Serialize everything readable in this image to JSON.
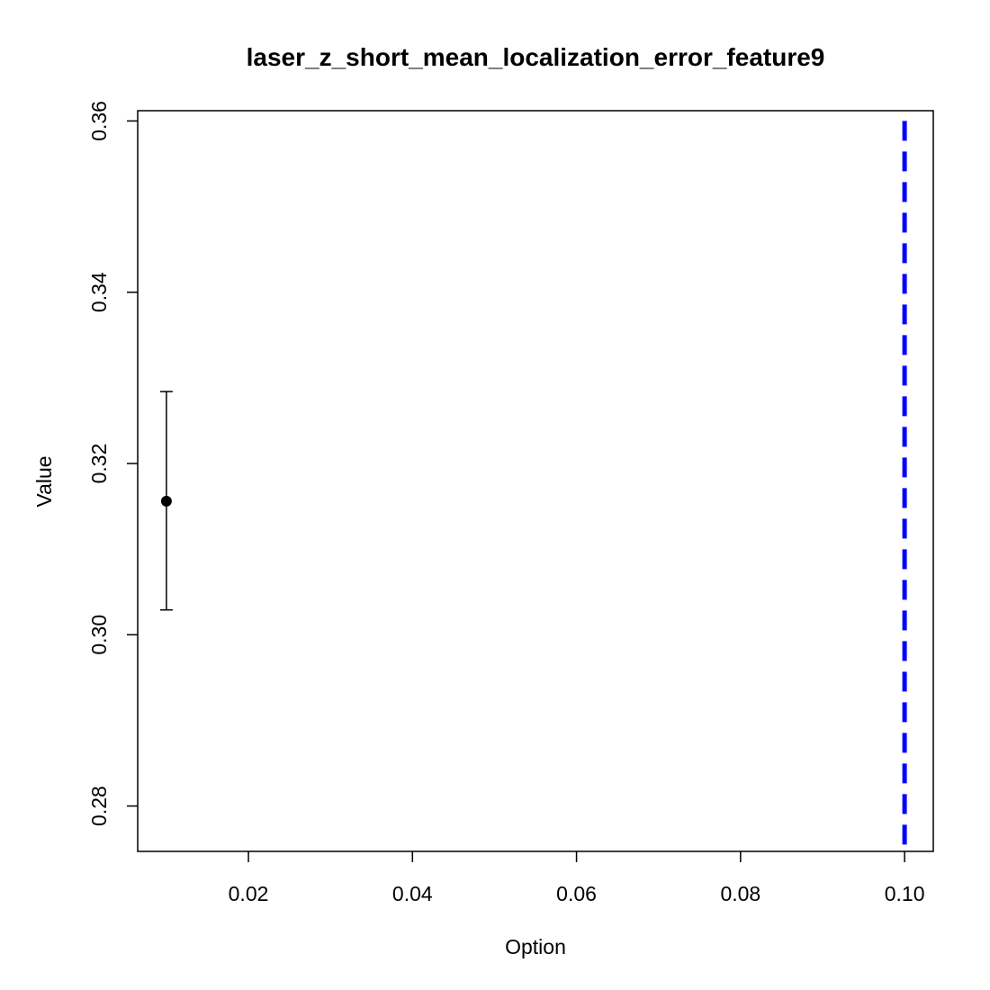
{
  "chart_data": {
    "type": "scatter",
    "title": "laser_z_short_mean_localization_error_feature9",
    "xlabel": "Option",
    "ylabel": "Value",
    "xlim": [
      0.0065,
      0.1035
    ],
    "ylim": [
      0.2747,
      0.3612
    ],
    "x_ticks": [
      0.02,
      0.04,
      0.06,
      0.08,
      0.1
    ],
    "x_tick_labels": [
      "0.02",
      "0.04",
      "0.06",
      "0.08",
      "0.10"
    ],
    "y_ticks": [
      0.28,
      0.3,
      0.32,
      0.34,
      0.36
    ],
    "y_tick_labels": [
      "0.28",
      "0.30",
      "0.32",
      "0.34",
      "0.36"
    ],
    "grid": false,
    "points": [
      {
        "x": 0.01,
        "y": 0.3156,
        "y_low": 0.3029,
        "y_high": 0.3284
      }
    ],
    "reference_line": {
      "orientation": "vertical",
      "x": 0.1,
      "style": "dashed",
      "color": "#0000ff"
    },
    "point_color": "#000000"
  }
}
